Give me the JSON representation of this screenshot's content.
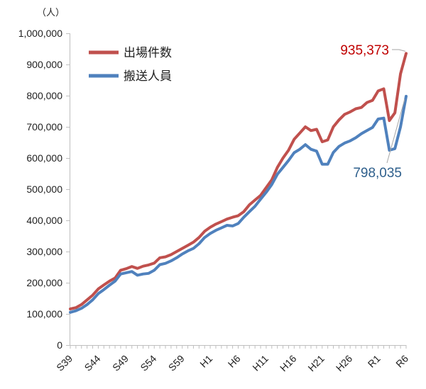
{
  "chart_data": {
    "type": "line",
    "title": "",
    "xlabel": "",
    "ylabel": "",
    "unit": "（人）",
    "ylim": [
      0,
      1000000
    ],
    "y_ticks": [
      0,
      100000,
      200000,
      300000,
      400000,
      500000,
      600000,
      700000,
      800000,
      900000,
      1000000
    ],
    "y_tick_labels": [
      "0",
      "100,000",
      "200,000",
      "300,000",
      "400,000",
      "500,000",
      "600,000",
      "700,000",
      "800,000",
      "900,000",
      "1,000,000"
    ],
    "x": [
      "S39",
      "S40",
      "S41",
      "S42",
      "S43",
      "S44",
      "S45",
      "S46",
      "S47",
      "S48",
      "S49",
      "S50",
      "S51",
      "S52",
      "S53",
      "S54",
      "S55",
      "S56",
      "S57",
      "S58",
      "S59",
      "S60",
      "S61",
      "S62",
      "S63",
      "H1",
      "H2",
      "H3",
      "H4",
      "H5",
      "H6",
      "H7",
      "H8",
      "H9",
      "H10",
      "H11",
      "H12",
      "H13",
      "H14",
      "H15",
      "H16",
      "H17",
      "H18",
      "H19",
      "H20",
      "H21",
      "H22",
      "H23",
      "H24",
      "H25",
      "H26",
      "H27",
      "H28",
      "H29",
      "H30",
      "R1",
      "R2",
      "R3",
      "R4",
      "R5",
      "R6"
    ],
    "x_tick_labels": [
      "S39",
      "S44",
      "S49",
      "S54",
      "S59",
      "H1",
      "H6",
      "H11",
      "H16",
      "H21",
      "H26",
      "R1",
      "R6"
    ],
    "legend_position": "top-left",
    "grid": false,
    "series": [
      {
        "name": "出場件数",
        "color": "#c0504d",
        "values": [
          116000,
          120000,
          130000,
          145000,
          160000,
          180000,
          193000,
          205000,
          215000,
          240000,
          245000,
          252000,
          246000,
          253000,
          257000,
          263000,
          280000,
          283000,
          290000,
          300000,
          310000,
          320000,
          330000,
          345000,
          365000,
          378000,
          388000,
          396000,
          404000,
          410000,
          415000,
          428000,
          450000,
          465000,
          480000,
          505000,
          530000,
          570000,
          600000,
          625000,
          660000,
          680000,
          700000,
          688000,
          692000,
          652000,
          658000,
          700000,
          722000,
          740000,
          748000,
          758000,
          762000,
          778000,
          785000,
          815000,
          822000,
          720000,
          745000,
          870000,
          935373
        ]
      },
      {
        "name": "搬送人員",
        "color": "#4f81bd",
        "values": [
          105000,
          110000,
          118000,
          130000,
          145000,
          165000,
          178000,
          192000,
          205000,
          228000,
          232000,
          236000,
          224000,
          228000,
          230000,
          240000,
          258000,
          262000,
          270000,
          280000,
          292000,
          302000,
          310000,
          325000,
          345000,
          358000,
          368000,
          376000,
          384000,
          382000,
          390000,
          410000,
          428000,
          445000,
          468000,
          490000,
          515000,
          548000,
          570000,
          592000,
          617000,
          628000,
          643000,
          628000,
          622000,
          580000,
          580000,
          618000,
          637000,
          648000,
          655000,
          665000,
          678000,
          688000,
          698000,
          725000,
          728000,
          625000,
          630000,
          700000,
          798035
        ]
      }
    ],
    "annotations": [
      {
        "text": "935,373",
        "series": "出場件数",
        "color": "#c00000"
      },
      {
        "text": "798,035",
        "series": "搬送人員",
        "color": "#2e5f8c"
      }
    ]
  }
}
